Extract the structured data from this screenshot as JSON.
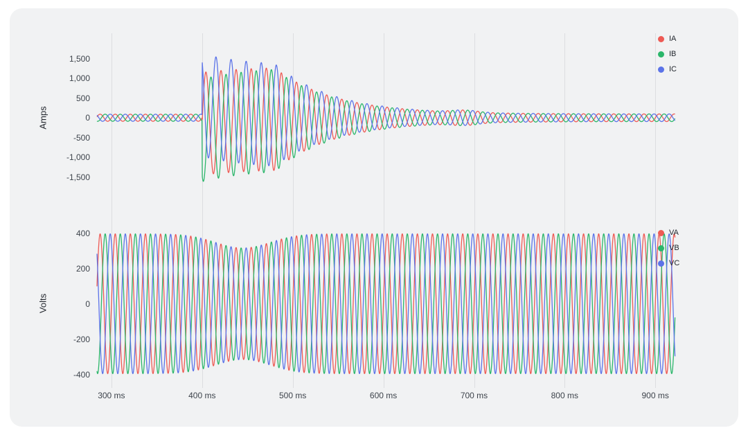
{
  "card": {
    "background": "#f1f2f3",
    "grid_color": "#dcdde0"
  },
  "x_axis": {
    "unit": "ms",
    "range_ms": [
      284,
      922
    ],
    "ticks": [
      {
        "value": 300,
        "label": "300 ms"
      },
      {
        "value": 400,
        "label": "400 ms"
      },
      {
        "value": 500,
        "label": "500 ms"
      },
      {
        "value": 600,
        "label": "600 ms"
      },
      {
        "value": 700,
        "label": "700 ms"
      },
      {
        "value": 800,
        "label": "800 ms"
      },
      {
        "value": 900,
        "label": "900 ms"
      }
    ]
  },
  "chart_data": [
    {
      "type": "line",
      "id": "current",
      "ylabel": "Amps",
      "ylim": [
        -1930,
        1930
      ],
      "frequency_hz": 60,
      "grid": "vertical-only",
      "legend_position": "top-right",
      "y_ticks": [
        {
          "value": 1500,
          "label": "1,500"
        },
        {
          "value": 1000,
          "label": "1,000"
        },
        {
          "value": 500,
          "label": "500"
        },
        {
          "value": 0,
          "label": "0"
        },
        {
          "value": -500,
          "label": "-500"
        },
        {
          "value": -1000,
          "label": "-1,000"
        },
        {
          "value": -1500,
          "label": "-1,500"
        }
      ],
      "series": [
        {
          "name": "IA",
          "color": "#ee5a54",
          "phase_deg": 0,
          "dc_offset": -150
        },
        {
          "name": "IB",
          "color": "#2bb66a",
          "phase_deg": -120,
          "dc_offset": -320
        },
        {
          "name": "IC",
          "color": "#5b73e8",
          "phase_deg": 120,
          "dc_offset": 320
        }
      ],
      "envelope": {
        "pre_fault_amp": 90,
        "fault_start_ms": 400,
        "fault_peak_amp": 1300,
        "plateau_ms": 80,
        "decay_tau_ms": 65,
        "post_fault_amp": 95,
        "dc_decay_tau_ms": 55,
        "post_bump": {
          "center_ms": 690,
          "amp": 55,
          "width_ms": 14
        }
      }
    },
    {
      "type": "line",
      "id": "voltage",
      "ylabel": "Volts",
      "ylim": [
        -450,
        450
      ],
      "frequency_hz": 60,
      "grid": "vertical-only",
      "legend_position": "top-right",
      "y_ticks": [
        {
          "value": 400,
          "label": "400"
        },
        {
          "value": 200,
          "label": "200"
        },
        {
          "value": 0,
          "label": "0"
        },
        {
          "value": -200,
          "label": "-200"
        },
        {
          "value": -400,
          "label": "-400"
        }
      ],
      "series": [
        {
          "name": "VA",
          "color": "#ee5a54",
          "phase_deg": 0
        },
        {
          "name": "VB",
          "color": "#2bb66a",
          "phase_deg": -120
        },
        {
          "name": "VC",
          "color": "#5b73e8",
          "phase_deg": 120
        }
      ],
      "envelope": {
        "base_amp": 396,
        "sag_center_ms": 445,
        "sag_depth": 80,
        "sag_width_ms": 30
      }
    }
  ]
}
